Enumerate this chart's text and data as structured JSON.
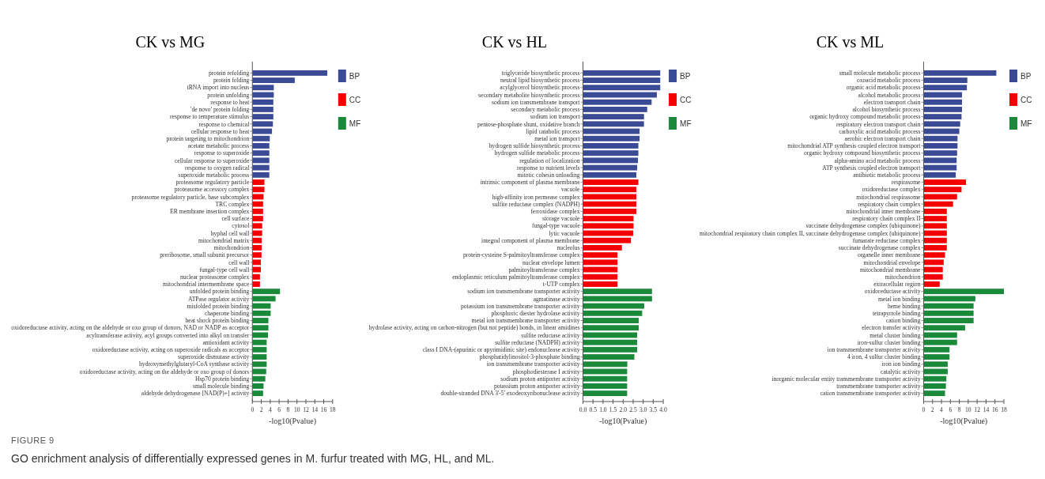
{
  "chart_data": [
    {
      "type": "bar",
      "orientation": "horizontal",
      "title": "CK vs MG",
      "xlabel": "-log10(Pvalue)",
      "legend": "right",
      "categories": [
        "protein refolding",
        "protein folding",
        "tRNA import into nucleus",
        "protein unfolding",
        "response to heat",
        "'de novo' protein folding",
        "response to temperature stimulus",
        "response to chemical",
        "cellular response to heat",
        "protein targeting to mitochondrion",
        "acetate metabolic process",
        "response to superoxide",
        "cellular response to superoxide",
        "response to oxygen radical",
        "superoxide metabolic process",
        "proteasome regulatory particle",
        "proteasome accessory complex",
        "proteasome regulatory particle, base subcomplex",
        "TRC complex",
        "ER membrane insertion complex",
        "cell surface",
        "cytosol",
        "hyphal cell wall",
        "mitochondrial matrix",
        "mitochondrion",
        "preribosome, small subunit precursor",
        "cell wall",
        "fungal-type cell wall",
        "nuclear proteasome complex",
        "mitochondrial intermembrane space",
        "unfolded protein binding",
        "ATPase regulator activity",
        "misfolded protein binding",
        "chaperone binding",
        "heat shock protein binding",
        "oxidoreductase activity, acting on the aldehyde or oxo group of donors, NAD or NADP as acceptor",
        "acyltransferase activity, acyl groups converted into alkyl on transfer",
        "antioxidant activity",
        "oxidoreductase activity, acting on superoxide radicals as acceptor",
        "superoxide dismutase activity",
        "hydroxymethylglutaryl-CoA synthase activity",
        "oxidoreductase activity, acting on the aldehyde or oxo group of donors",
        "Hsp70 protein binding",
        "small molecule binding",
        "aldehyde dehydrogenase [NAD(P)+] activity"
      ],
      "series": [
        {
          "name": "BP",
          "color": "#3a4a94",
          "values": [
            16.8,
            9.5,
            4.8,
            4.8,
            4.7,
            4.7,
            4.7,
            4.6,
            4.4,
            3.9,
            3.8,
            3.8,
            3.8,
            3.8,
            3.8,
            null,
            null,
            null,
            null,
            null,
            null,
            null,
            null,
            null,
            null,
            null,
            null,
            null,
            null,
            null,
            null,
            null,
            null,
            null,
            null,
            null,
            null,
            null,
            null,
            null,
            null,
            null,
            null,
            null,
            null
          ]
        },
        {
          "name": "CC",
          "color": "#f50000",
          "values": [
            null,
            null,
            null,
            null,
            null,
            null,
            null,
            null,
            null,
            null,
            null,
            null,
            null,
            null,
            null,
            2.7,
            2.7,
            2.5,
            2.4,
            2.4,
            2.4,
            2.2,
            2.2,
            2.1,
            2.1,
            2.05,
            1.9,
            1.9,
            1.7,
            1.7,
            null,
            null,
            null,
            null,
            null,
            null,
            null,
            null,
            null,
            null,
            null,
            null,
            null,
            null,
            null
          ]
        },
        {
          "name": "MF",
          "color": "#1a8a3a",
          "values": [
            null,
            null,
            null,
            null,
            null,
            null,
            null,
            null,
            null,
            null,
            null,
            null,
            null,
            null,
            null,
            null,
            null,
            null,
            null,
            null,
            null,
            null,
            null,
            null,
            null,
            null,
            null,
            null,
            null,
            null,
            6.2,
            5.2,
            4.1,
            4.1,
            3.6,
            3.6,
            3.5,
            3.2,
            3.2,
            3.2,
            3.2,
            3.1,
            2.9,
            2.5,
            2.4
          ]
        }
      ],
      "xlim": [
        0,
        18
      ],
      "xticks": [
        0,
        2,
        4,
        6,
        8,
        10,
        12,
        14,
        16,
        18
      ],
      "annotations": [
        "FIGURE 9",
        "GO enrichment analysis of differentially expressed genes in M. furfur treated with MG, HL, and ML."
      ]
    },
    {
      "type": "bar",
      "orientation": "horizontal",
      "title": "CK vs HL",
      "xlabel": "-log10(Pvalue)",
      "legend": "right",
      "categories": [
        "triglyceride biosynthetic process",
        "neutral lipid biosynthetic process",
        "acylglycerol biosynthetic process",
        "secondary metabolite biosynthetic process",
        "sodium ion transmembrane transport",
        "secondary metabolic process",
        "sodium ion transport",
        "pentose-phosphate shunt, oxidative branch",
        "lipid catabolic process",
        "metal ion transport",
        "hydrogen sulfide biosynthetic process",
        "hydrogen sulfide metabolic process",
        "regulation of localization",
        "response to nutrient levels",
        "mitotic cohesin unloading",
        "intrinsic component of plasma membrane",
        "vacuole",
        "high-affinity iron permease complex",
        "sulfite reductase complex (NADPH)",
        "ferroxidase complex",
        "storage vacuole",
        "fungal-type vacuole",
        "lytic vacuole",
        "integral component of plasma membrane",
        "nucleolus",
        "protein-cysteine S-palmitoyltransferase complex",
        "nuclear envelope lumen",
        "palmitoyltransferase complex",
        "endoplasmic reticulum palmitoyltransferase complex",
        "t-UTP complex",
        "sodium ion transmembrane transporter activity",
        "agmatinase activity",
        "potassium ion transmembrane transporter activity",
        "phosphoric diester hydrolase activity",
        "metal ion transmembrane transporter activity",
        "hydrolase activity, acting on carbon-nitrogen (but not peptide) bonds, in linear amidines",
        "sulfite reductase activity",
        "sulfite reductase (NADPH) activity",
        "class I DNA-(apurinic or apyrimidinic site) endonuclease activity",
        "phosphatidylinositol-3-phosphate binding",
        "ion transmembrane transporter activity",
        "phosphodiesterase I activity",
        "sodium proton antiporter activity",
        "potassium proton antiporter activity",
        "double-stranded DNA 3'-5' exodeoxyribonuclease activity"
      ],
      "series": [
        {
          "name": "BP",
          "color": "#3a4a94",
          "values": [
            3.85,
            3.85,
            3.85,
            3.68,
            3.42,
            3.2,
            3.04,
            3.04,
            2.82,
            2.82,
            2.76,
            2.76,
            2.74,
            2.7,
            2.66,
            null,
            null,
            null,
            null,
            null,
            null,
            null,
            null,
            null,
            null,
            null,
            null,
            null,
            null,
            null,
            null,
            null,
            null,
            null,
            null,
            null,
            null,
            null,
            null,
            null,
            null,
            null,
            null,
            null,
            null
          ]
        },
        {
          "name": "CC",
          "color": "#f50000",
          "values": [
            null,
            null,
            null,
            null,
            null,
            null,
            null,
            null,
            null,
            null,
            null,
            null,
            null,
            null,
            null,
            2.76,
            2.66,
            2.66,
            2.66,
            2.66,
            2.52,
            2.52,
            2.5,
            2.39,
            1.94,
            1.72,
            1.72,
            1.72,
            1.72,
            1.72,
            null,
            null,
            null,
            null,
            null,
            null,
            null,
            null,
            null,
            null,
            null,
            null,
            null,
            null,
            null
          ]
        },
        {
          "name": "MF",
          "color": "#1a8a3a",
          "values": [
            null,
            null,
            null,
            null,
            null,
            null,
            null,
            null,
            null,
            null,
            null,
            null,
            null,
            null,
            null,
            null,
            null,
            null,
            null,
            null,
            null,
            null,
            null,
            null,
            null,
            null,
            null,
            null,
            null,
            null,
            3.44,
            3.44,
            3.05,
            2.95,
            2.78,
            2.78,
            2.7,
            2.7,
            2.7,
            2.56,
            2.21,
            2.2,
            2.2,
            2.2,
            2.2
          ]
        }
      ],
      "xlim": [
        0,
        4
      ],
      "xticks": [
        {
          "value": 0,
          "label": "0.0"
        },
        0.5,
        {
          "value": 1,
          "label": "1.0"
        },
        1.5,
        {
          "value": 2,
          "label": "2.0"
        },
        2.5,
        {
          "value": 3,
          "label": "3.0"
        },
        3.5,
        {
          "value": 4,
          "label": "4.0"
        }
      ]
    },
    {
      "type": "bar",
      "orientation": "horizontal",
      "title": "CK vs ML",
      "xlabel": "-log10(Pvalue)",
      "legend": "right",
      "categories": [
        "small molecule metabolic process",
        "oxoacid metabolic process",
        "organic acid metabolic process",
        "alcohol metabolic process",
        "electron transport chain",
        "alcohol biosynthetic process",
        "organic hydroxy compound metabolic process",
        "respiratory electron transport chain",
        "carboxylic acid metabolic process",
        "aerobic electron transport chain",
        "mitochondrial ATP synthesis coupled electron transport",
        "organic hydroxy compound biosynthetic process",
        "alpha-amino acid metabolic process",
        "ATP synthesis coupled electron transport",
        "antibiotic metabolic process",
        "respirasome",
        "oxidoreductase complex",
        "mitochondrial respirasome",
        "respiratory chain complex",
        "mitochondrial inner membrane",
        "respiratory chain complex II",
        "succinate dehydrogenase complex (ubiquinone)",
        "mitochondrial respiratory chain complex II, succinate dehydrogenase complex (ubiquinone)",
        "fumarate reductase complex",
        "succinate dehydrogenase complex",
        "organelle inner membrane",
        "mitochondrial envelope",
        "mitochondrial membrane",
        "mitochondrion",
        "extracellular region",
        "oxidoreductase activity",
        "metal ion binding",
        "heme binding",
        "tetrapyrrole binding",
        "cation binding",
        "electron transfer activity",
        "metal cluster binding",
        "iron-sulfur cluster binding",
        "ion transmembrane transporter activity",
        "4 iron, 4 sulfur cluster binding",
        "iron ion binding",
        "catalytic activity",
        "inorganic molecular entity transmembrane transporter activity",
        "transmembrane transporter activity",
        "cation transmembrane transporter activity"
      ],
      "series": [
        {
          "name": "BP",
          "color": "#3a4a94",
          "values": [
            16.3,
            9.8,
            9.7,
            8.6,
            8.6,
            8.6,
            8.5,
            8.2,
            8.0,
            7.6,
            7.6,
            7.5,
            7.4,
            7.4,
            7.2,
            null,
            null,
            null,
            null,
            null,
            null,
            null,
            null,
            null,
            null,
            null,
            null,
            null,
            null,
            null,
            null,
            null,
            null,
            null,
            null,
            null,
            null,
            null,
            null,
            null,
            null,
            null,
            null,
            null,
            null
          ]
        },
        {
          "name": "CC",
          "color": "#f50000",
          "values": [
            null,
            null,
            null,
            null,
            null,
            null,
            null,
            null,
            null,
            null,
            null,
            null,
            null,
            null,
            null,
            9.5,
            8.5,
            7.5,
            6.6,
            5.2,
            5.2,
            5.2,
            5.2,
            5.2,
            5.2,
            4.8,
            4.5,
            4.3,
            4.3,
            3.6,
            null,
            null,
            null,
            null,
            null,
            null,
            null,
            null,
            null,
            null,
            null,
            null,
            null,
            null,
            null
          ]
        },
        {
          "name": "MF",
          "color": "#1a8a3a",
          "values": [
            null,
            null,
            null,
            null,
            null,
            null,
            null,
            null,
            null,
            null,
            null,
            null,
            null,
            null,
            null,
            null,
            null,
            null,
            null,
            null,
            null,
            null,
            null,
            null,
            null,
            null,
            null,
            null,
            null,
            null,
            18.0,
            11.6,
            11.2,
            11.2,
            11.2,
            9.3,
            7.5,
            7.5,
            5.8,
            5.8,
            5.4,
            5.4,
            5.1,
            5.0,
            4.8
          ]
        }
      ],
      "xlim": [
        0,
        18
      ],
      "xticks": [
        0,
        2,
        4,
        6,
        8,
        10,
        12,
        14,
        16,
        18
      ]
    }
  ]
}
